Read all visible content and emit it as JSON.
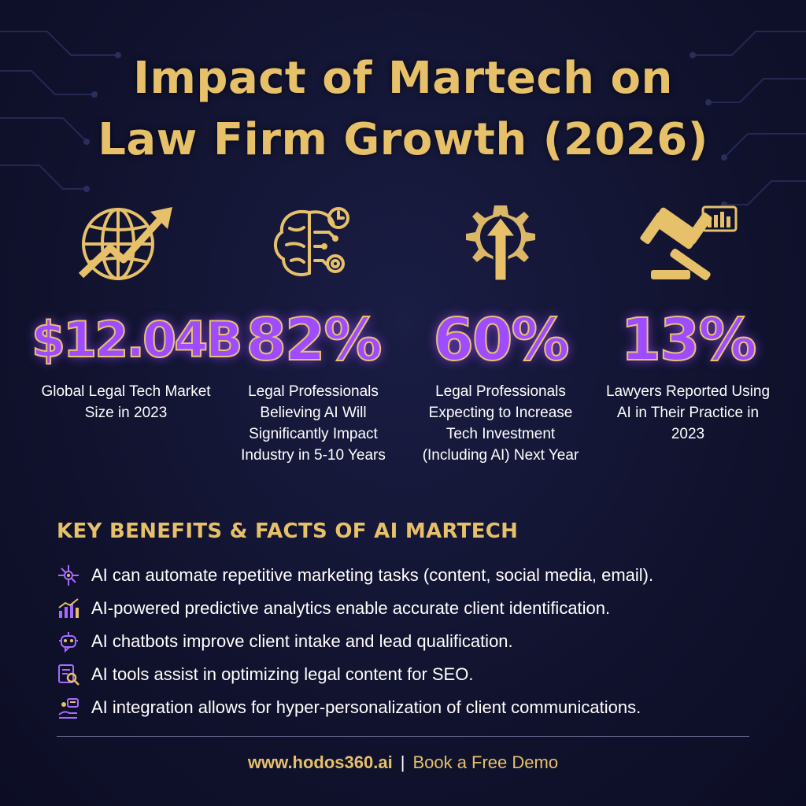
{
  "title": {
    "line1": "Impact of Martech on",
    "line2": "Law Firm Growth (2026)"
  },
  "colors": {
    "gold": "#e7c06a",
    "purple": "#9d4dff",
    "background": "#11132f"
  },
  "stats": [
    {
      "icon": "globe-growth-icon",
      "value": "$12.04B",
      "description": "Global Legal Tech Market Size in 2023"
    },
    {
      "icon": "ai-brain-icon",
      "value": "82%",
      "description": "Legal Professionals Believing AI Will Significantly Impact Industry in 5-10 Years"
    },
    {
      "icon": "gear-arrow-icon",
      "value": "60%",
      "description": "Legal Professionals Expecting to Increase Tech Investment (Including AI) Next Year"
    },
    {
      "icon": "gavel-chart-icon",
      "value": "13%",
      "description": "Lawyers Reported Using AI in Their Practice in 2023"
    }
  ],
  "benefits": {
    "heading": "KEY BENEFITS & FACTS OF AI MARTECH",
    "items": [
      {
        "icon": "network-icon",
        "text": "AI can automate repetitive marketing tasks (content, social media, email)."
      },
      {
        "icon": "analytics-icon",
        "text": "AI-powered predictive analytics enable accurate client identification."
      },
      {
        "icon": "chatbot-icon",
        "text": "AI chatbots improve client intake and lead qualification."
      },
      {
        "icon": "seo-icon",
        "text": "AI tools assist in optimizing legal content for SEO."
      },
      {
        "icon": "personalization-icon",
        "text": "AI integration allows for hyper-personalization of client communications."
      }
    ]
  },
  "footer": {
    "url": "www.hodos360.ai",
    "separator": "|",
    "cta": "Book a Free Demo"
  }
}
